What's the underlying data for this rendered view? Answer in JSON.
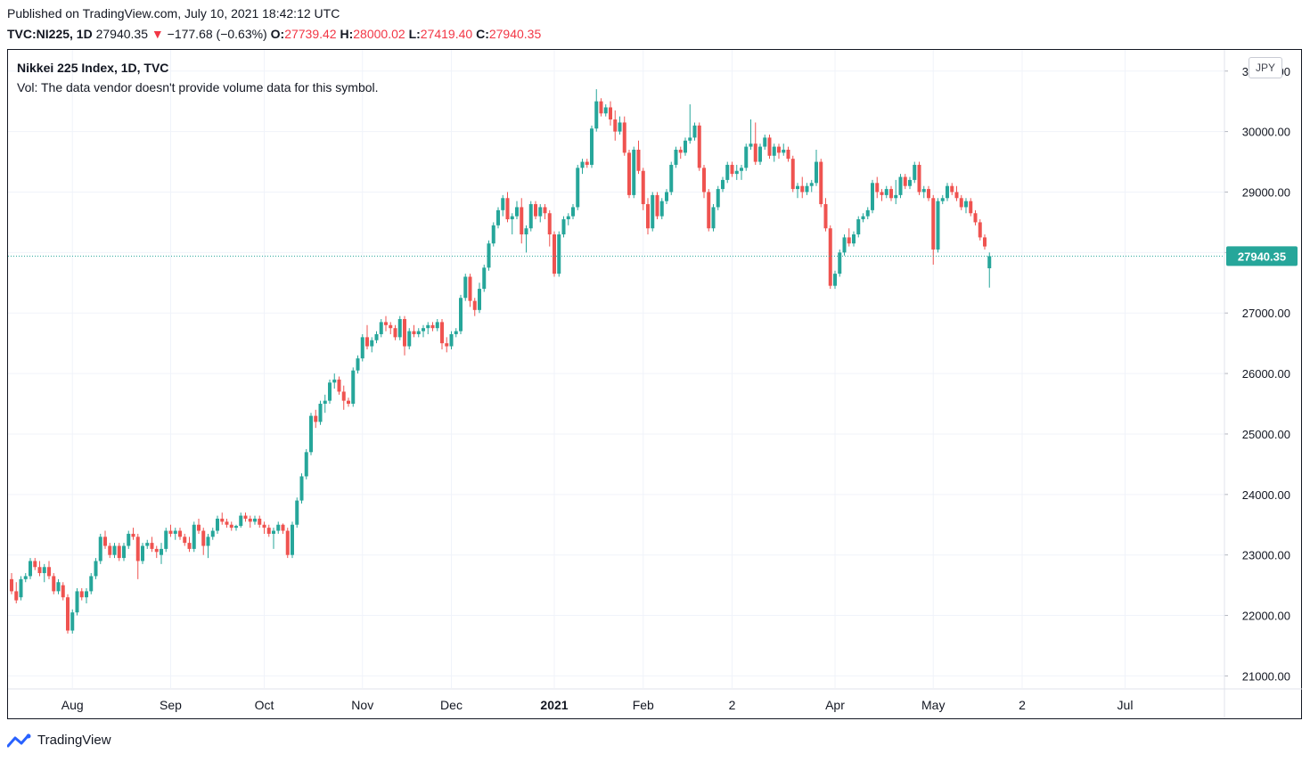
{
  "header": {
    "published": "Published on TradingView.com, July 10, 2021 18:42:12 UTC",
    "symbol": "TVC:NI225, 1D",
    "last": "27940.35",
    "change": "−177.68 (−0.63%)",
    "open_label": "O:",
    "open": "27739.42",
    "high_label": "H:",
    "high": "28000.02",
    "low_label": "L:",
    "low": "27419.40",
    "close_label": "C:",
    "close": "27940.35"
  },
  "legend": {
    "title": "Nikkei 225 Index, 1D, TVC",
    "volume_note": "Vol: The data vendor doesn't provide volume data for this symbol."
  },
  "currency": "JPY",
  "brand": "TradingView",
  "colors": {
    "up": "#26a69a",
    "down": "#ef5350",
    "grid": "#f0f3fa",
    "last_price_bg": "#26a69a"
  },
  "chart_data": {
    "type": "candlestick",
    "title": "Nikkei 225 Index, 1D, TVC",
    "ylim": [
      20800,
      31350
    ],
    "y_ticks": [
      "21000.00",
      "22000.00",
      "23000.00",
      "24000.00",
      "25000.00",
      "26000.00",
      "27000.00",
      "28000.00",
      "29000.00",
      "30000.00",
      "31000.00"
    ],
    "y_tick_values": [
      21000,
      22000,
      23000,
      24000,
      25000,
      26000,
      27000,
      28000,
      29000,
      30000,
      31000
    ],
    "x_ticks": [
      {
        "label": "Aug",
        "bold": false,
        "bar": 13
      },
      {
        "label": "Sep",
        "bold": false,
        "bar": 34
      },
      {
        "label": "Oct",
        "bold": false,
        "bar": 54
      },
      {
        "label": "Nov",
        "bold": false,
        "bar": 75
      },
      {
        "label": "Dec",
        "bold": false,
        "bar": 94
      },
      {
        "label": "2021",
        "bold": true,
        "bar": 116
      },
      {
        "label": "Feb",
        "bold": false,
        "bar": 135
      },
      {
        "label": "2",
        "bold": false,
        "bar": 154
      },
      {
        "label": "Apr",
        "bold": false,
        "bar": 176
      },
      {
        "label": "May",
        "bold": false,
        "bar": 197
      },
      {
        "label": "2",
        "bold": false,
        "bar": 216
      },
      {
        "label": "Jul",
        "bold": false,
        "bar": 238
      }
    ],
    "last_price": 27940.35,
    "last_price_label": "27940.35",
    "ohlc": [
      [
        22600,
        22700,
        22350,
        22400
      ],
      [
        22400,
        22550,
        22200,
        22250
      ],
      [
        22300,
        22650,
        22250,
        22600
      ],
      [
        22600,
        22700,
        22550,
        22650
      ],
      [
        22650,
        22950,
        22600,
        22900
      ],
      [
        22900,
        22950,
        22750,
        22800
      ],
      [
        22800,
        22900,
        22650,
        22700
      ],
      [
        22700,
        22850,
        22550,
        22800
      ],
      [
        22800,
        22900,
        22600,
        22650
      ],
      [
        22650,
        22700,
        22350,
        22400
      ],
      [
        22400,
        22600,
        22350,
        22550
      ],
      [
        22500,
        22550,
        22250,
        22300
      ],
      [
        22300,
        22350,
        21700,
        21750
      ],
      [
        21750,
        22100,
        21700,
        22050
      ],
      [
        22050,
        22450,
        22000,
        22400
      ],
      [
        22400,
        22450,
        22250,
        22300
      ],
      [
        22300,
        22450,
        22200,
        22400
      ],
      [
        22400,
        22700,
        22350,
        22650
      ],
      [
        22650,
        22950,
        22600,
        22900
      ],
      [
        22900,
        23350,
        22850,
        23300
      ],
      [
        23300,
        23400,
        23100,
        23150
      ],
      [
        23150,
        23200,
        22950,
        23000
      ],
      [
        23000,
        23200,
        22950,
        23150
      ],
      [
        23150,
        23200,
        22900,
        22950
      ],
      [
        22950,
        23200,
        22900,
        23150
      ],
      [
        23150,
        23400,
        23100,
        23350
      ],
      [
        23350,
        23450,
        23250,
        23300
      ],
      [
        23300,
        23350,
        22600,
        22900
      ],
      [
        22900,
        23200,
        22850,
        23150
      ],
      [
        23150,
        23250,
        23100,
        23200
      ],
      [
        23200,
        23300,
        23050,
        23100
      ],
      [
        23100,
        23150,
        22950,
        23050
      ],
      [
        23000,
        23200,
        22850,
        23100
      ],
      [
        23100,
        23450,
        23050,
        23400
      ],
      [
        23400,
        23500,
        23300,
        23350
      ],
      [
        23350,
        23450,
        23250,
        23400
      ],
      [
        23400,
        23450,
        23250,
        23300
      ],
      [
        23300,
        23350,
        23150,
        23200
      ],
      [
        23200,
        23300,
        23050,
        23100
      ],
      [
        23100,
        23550,
        23050,
        23500
      ],
      [
        23500,
        23600,
        23350,
        23400
      ],
      [
        23400,
        23450,
        23000,
        23150
      ],
      [
        23150,
        23350,
        22950,
        23300
      ],
      [
        23300,
        23450,
        23250,
        23400
      ],
      [
        23400,
        23650,
        23350,
        23600
      ],
      [
        23600,
        23700,
        23500,
        23550
      ],
      [
        23550,
        23600,
        23450,
        23500
      ],
      [
        23500,
        23550,
        23400,
        23450
      ],
      [
        23450,
        23500,
        23400,
        23480
      ],
      [
        23480,
        23700,
        23450,
        23650
      ],
      [
        23650,
        23700,
        23550,
        23600
      ],
      [
        23600,
        23650,
        23450,
        23550
      ],
      [
        23550,
        23650,
        23500,
        23600
      ],
      [
        23600,
        23650,
        23450,
        23500
      ],
      [
        23500,
        23550,
        23350,
        23450
      ],
      [
        23450,
        23500,
        23300,
        23350
      ],
      [
        23350,
        23450,
        23100,
        23400
      ],
      [
        23400,
        23550,
        23350,
        23500
      ],
      [
        23500,
        23520,
        23350,
        23400
      ],
      [
        23400,
        23450,
        22950,
        23000
      ],
      [
        23000,
        23550,
        22950,
        23500
      ],
      [
        23500,
        23950,
        23450,
        23900
      ],
      [
        23900,
        24350,
        23850,
        24300
      ],
      [
        24300,
        24750,
        24250,
        24700
      ],
      [
        24700,
        25350,
        24650,
        25300
      ],
      [
        25300,
        25400,
        25100,
        25200
      ],
      [
        25200,
        25550,
        25150,
        25500
      ],
      [
        25500,
        25650,
        25350,
        25550
      ],
      [
        25550,
        25900,
        25500,
        25850
      ],
      [
        25850,
        26000,
        25750,
        25900
      ],
      [
        25900,
        25950,
        25650,
        25700
      ],
      [
        25700,
        25800,
        25400,
        25550
      ],
      [
        25550,
        25600,
        25450,
        25500
      ],
      [
        25500,
        26100,
        25450,
        26050
      ],
      [
        26050,
        26300,
        26000,
        26250
      ],
      [
        26250,
        26650,
        26200,
        26600
      ],
      [
        26600,
        26800,
        26400,
        26450
      ],
      [
        26450,
        26600,
        26350,
        26550
      ],
      [
        26550,
        26700,
        26500,
        26650
      ],
      [
        26650,
        26900,
        26600,
        26850
      ],
      [
        26850,
        26950,
        26700,
        26800
      ],
      [
        26800,
        26850,
        26650,
        26750
      ],
      [
        26750,
        26800,
        26550,
        26600
      ],
      [
        26600,
        26950,
        26550,
        26900
      ],
      [
        26900,
        26950,
        26300,
        26450
      ],
      [
        26450,
        26750,
        26400,
        26700
      ],
      [
        26700,
        26800,
        26600,
        26650
      ],
      [
        26650,
        26750,
        26600,
        26700
      ],
      [
        26700,
        26800,
        26600,
        26750
      ],
      [
        26750,
        26850,
        26650,
        26800
      ],
      [
        26800,
        26850,
        26700,
        26750
      ],
      [
        26750,
        26900,
        26700,
        26850
      ],
      [
        26850,
        26900,
        26400,
        26500
      ],
      [
        26500,
        26600,
        26350,
        26450
      ],
      [
        26450,
        26700,
        26400,
        26650
      ],
      [
        26650,
        26750,
        26600,
        26700
      ],
      [
        26700,
        27300,
        26650,
        27250
      ],
      [
        27250,
        27650,
        27200,
        27600
      ],
      [
        27600,
        27650,
        27100,
        27200
      ],
      [
        27200,
        27250,
        26950,
        27050
      ],
      [
        27050,
        27500,
        27000,
        27400
      ],
      [
        27400,
        27800,
        27350,
        27750
      ],
      [
        27750,
        28200,
        27700,
        28150
      ],
      [
        28150,
        28500,
        28100,
        28450
      ],
      [
        28450,
        28750,
        28400,
        28700
      ],
      [
        28700,
        28950,
        28600,
        28900
      ],
      [
        28900,
        29000,
        28500,
        28550
      ],
      [
        28550,
        28650,
        28300,
        28600
      ],
      [
        28600,
        28850,
        28550,
        28750
      ],
      [
        28750,
        28900,
        28150,
        28300
      ],
      [
        28300,
        28450,
        28000,
        28400
      ],
      [
        28400,
        28850,
        28350,
        28800
      ],
      [
        28800,
        28850,
        28550,
        28600
      ],
      [
        28600,
        28800,
        28500,
        28750
      ],
      [
        28750,
        28800,
        28550,
        28650
      ],
      [
        28650,
        28700,
        28100,
        28300
      ],
      [
        28300,
        28350,
        27600,
        27650
      ],
      [
        27650,
        28350,
        27600,
        28300
      ],
      [
        28300,
        28600,
        28250,
        28550
      ],
      [
        28550,
        28650,
        28450,
        28600
      ],
      [
        28600,
        28800,
        28550,
        28750
      ],
      [
        28750,
        29450,
        28700,
        29400
      ],
      [
        29400,
        29550,
        29300,
        29500
      ],
      [
        29500,
        29550,
        29400,
        29450
      ],
      [
        29450,
        30100,
        29400,
        30050
      ],
      [
        30050,
        30700,
        30000,
        30500
      ],
      [
        30500,
        30550,
        30250,
        30300
      ],
      [
        30300,
        30450,
        30250,
        30400
      ],
      [
        30400,
        30500,
        30100,
        30200
      ],
      [
        30200,
        30350,
        29850,
        30000
      ],
      [
        30000,
        30250,
        29950,
        30150
      ],
      [
        30150,
        30250,
        29600,
        29650
      ],
      [
        29650,
        29700,
        28900,
        28950
      ],
      [
        28950,
        29750,
        28900,
        29700
      ],
      [
        29700,
        29850,
        29300,
        29350
      ],
      [
        29350,
        29400,
        28700,
        28800
      ],
      [
        28800,
        28900,
        28300,
        28400
      ],
      [
        28400,
        29000,
        28350,
        28950
      ],
      [
        28950,
        29000,
        28550,
        28600
      ],
      [
        28600,
        28900,
        28550,
        28850
      ],
      [
        28850,
        29050,
        28800,
        29000
      ],
      [
        29000,
        29500,
        28950,
        29450
      ],
      [
        29450,
        29750,
        29400,
        29700
      ],
      [
        29700,
        29750,
        29550,
        29650
      ],
      [
        29650,
        29900,
        29600,
        29850
      ],
      [
        29850,
        30450,
        29800,
        29900
      ],
      [
        29900,
        30150,
        29850,
        30100
      ],
      [
        30100,
        30150,
        29350,
        29400
      ],
      [
        29400,
        29450,
        28900,
        29000
      ],
      [
        29000,
        29050,
        28350,
        28400
      ],
      [
        28400,
        28800,
        28350,
        28750
      ],
      [
        28750,
        29100,
        28700,
        29050
      ],
      [
        29050,
        29250,
        29000,
        29200
      ],
      [
        29200,
        29500,
        29150,
        29450
      ],
      [
        29450,
        29500,
        29250,
        29300
      ],
      [
        29300,
        29450,
        29200,
        29350
      ],
      [
        29350,
        29450,
        29200,
        29400
      ],
      [
        29400,
        29800,
        29350,
        29750
      ],
      [
        29750,
        30200,
        29700,
        29800
      ],
      [
        29800,
        30150,
        29450,
        29500
      ],
      [
        29500,
        29800,
        29450,
        29750
      ],
      [
        29750,
        29950,
        29700,
        29900
      ],
      [
        29900,
        29950,
        29550,
        29600
      ],
      [
        29600,
        29800,
        29500,
        29750
      ],
      [
        29750,
        29800,
        29550,
        29650
      ],
      [
        29650,
        29800,
        29600,
        29700
      ],
      [
        29700,
        29750,
        29500,
        29550
      ],
      [
        29550,
        29600,
        29000,
        29050
      ],
      [
        29050,
        29150,
        28900,
        29100
      ],
      [
        29100,
        29250,
        28900,
        29000
      ],
      [
        29000,
        29150,
        28950,
        29100
      ],
      [
        29100,
        29200,
        29000,
        29150
      ],
      [
        29150,
        29700,
        29100,
        29500
      ],
      [
        29500,
        29550,
        28750,
        28800
      ],
      [
        28800,
        28900,
        28350,
        28400
      ],
      [
        28400,
        28450,
        27400,
        27450
      ],
      [
        27450,
        27700,
        27400,
        27650
      ],
      [
        27650,
        28050,
        27600,
        28000
      ],
      [
        28000,
        28300,
        27950,
        28250
      ],
      [
        28250,
        28400,
        28100,
        28150
      ],
      [
        28150,
        28350,
        28100,
        28300
      ],
      [
        28300,
        28600,
        28250,
        28550
      ],
      [
        28550,
        28650,
        28500,
        28600
      ],
      [
        28600,
        28750,
        28550,
        28700
      ],
      [
        28700,
        29200,
        28650,
        29150
      ],
      [
        29150,
        29250,
        28900,
        29000
      ],
      [
        29000,
        29050,
        28850,
        28950
      ],
      [
        28950,
        29100,
        28900,
        29050
      ],
      [
        29050,
        29100,
        28850,
        28900
      ],
      [
        28900,
        29200,
        28800,
        28950
      ],
      [
        28950,
        29300,
        28900,
        29250
      ],
      [
        29250,
        29300,
        29050,
        29100
      ],
      [
        29100,
        29250,
        29050,
        29200
      ],
      [
        29200,
        29500,
        29150,
        29450
      ],
      [
        29450,
        29500,
        28950,
        29000
      ],
      [
        29000,
        29100,
        28900,
        29050
      ],
      [
        29050,
        29100,
        28850,
        28900
      ],
      [
        28900,
        28950,
        27800,
        28050
      ],
      [
        28050,
        28900,
        28000,
        28850
      ],
      [
        28850,
        28950,
        28800,
        28900
      ],
      [
        28900,
        29150,
        28850,
        29100
      ],
      [
        29100,
        29150,
        28950,
        29000
      ],
      [
        29000,
        29100,
        28850,
        28900
      ],
      [
        28900,
        28950,
        28700,
        28750
      ],
      [
        28750,
        28900,
        28650,
        28850
      ],
      [
        28850,
        28900,
        28600,
        28650
      ],
      [
        28650,
        28700,
        28450,
        28500
      ],
      [
        28500,
        28550,
        28200,
        28250
      ],
      [
        28250,
        28300,
        28050,
        28100
      ],
      [
        27740,
        28000,
        27420,
        27940
      ]
    ]
  }
}
